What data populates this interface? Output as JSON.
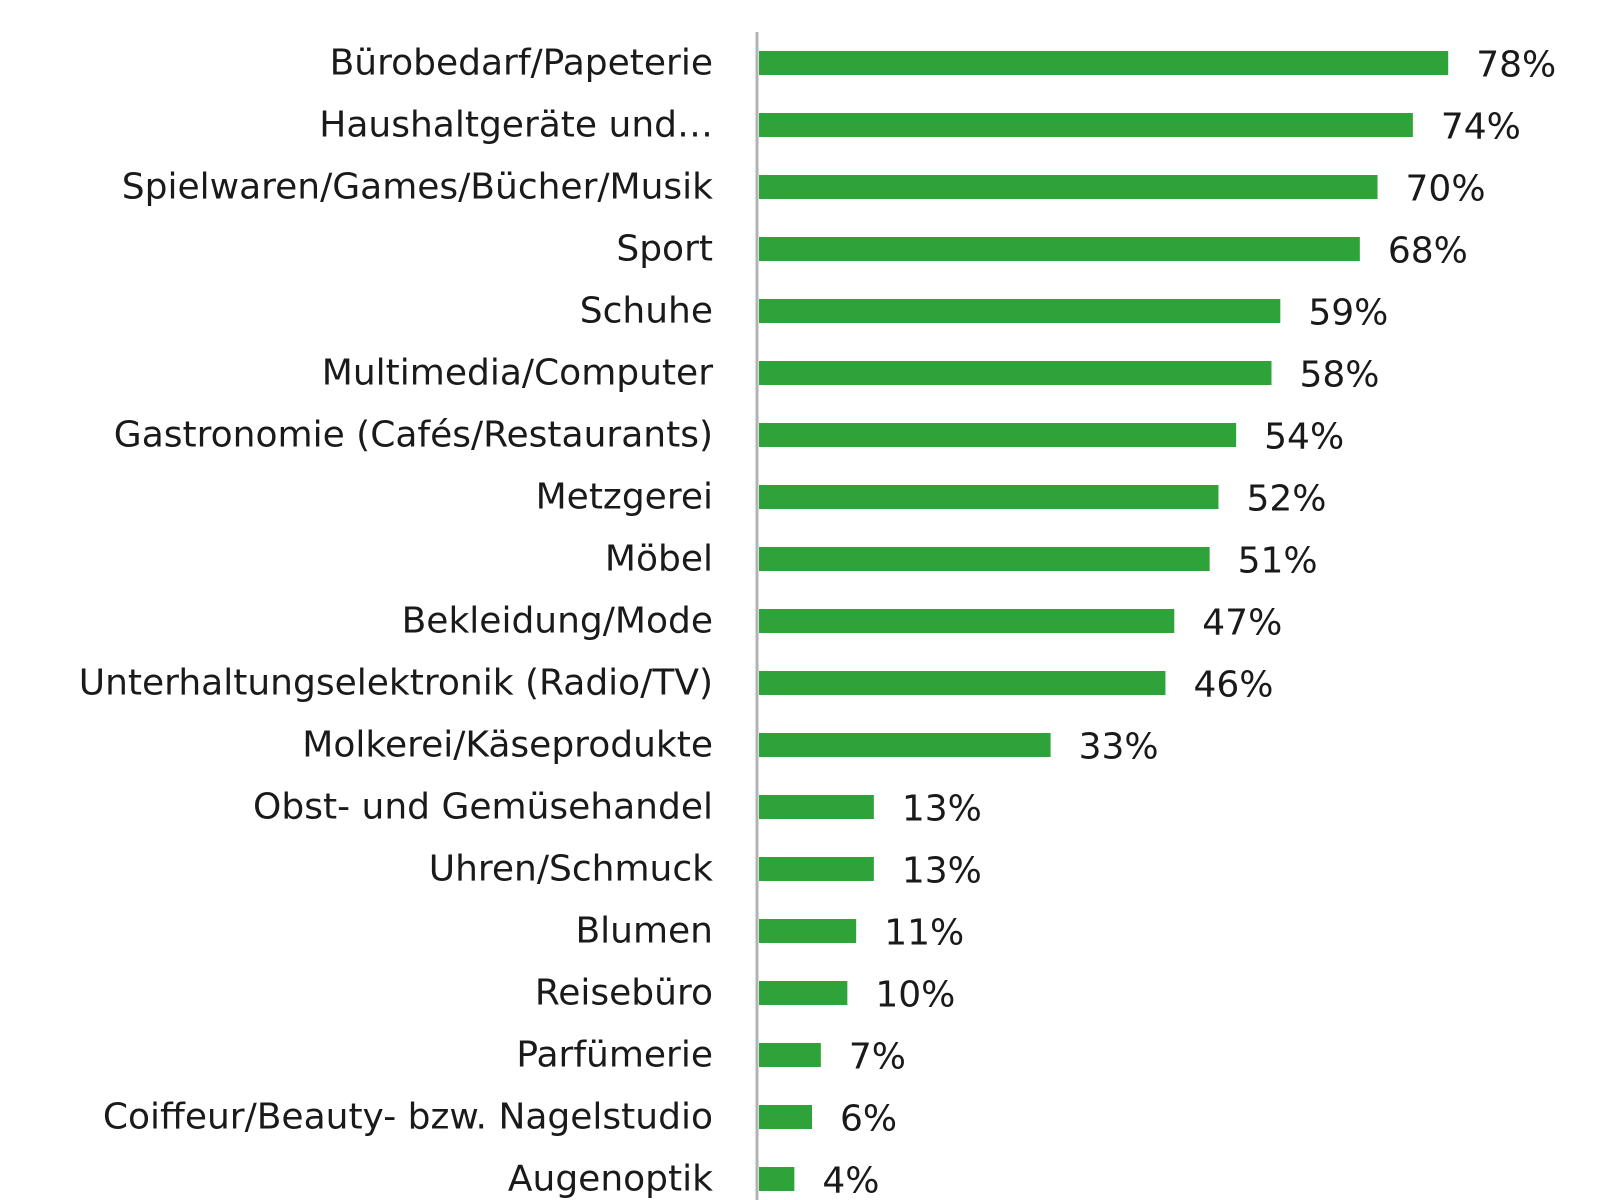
{
  "chart_data": {
    "type": "bar",
    "orientation": "horizontal",
    "categories": [
      "Bürobedarf/Papeterie",
      "Haushaltgeräte und…",
      "Spielwaren/Games/Bücher/Musik",
      "Sport",
      "Schuhe",
      "Multimedia/Computer",
      "Gastronomie (Cafés/Restaurants)",
      "Metzgerei",
      "Möbel",
      "Bekleidung/Mode",
      "Unterhaltungselektronik (Radio/TV)",
      "Molkerei/Käseprodukte",
      "Obst- und Gemüsehandel",
      "Uhren/Schmuck",
      "Blumen",
      "Reisebüro",
      "Parfümerie",
      "Coiffeur/Beauty- bzw. Nagelstudio",
      "Augenoptik"
    ],
    "values": [
      78,
      74,
      70,
      68,
      59,
      58,
      54,
      52,
      51,
      47,
      46,
      33,
      13,
      13,
      11,
      10,
      7,
      6,
      4
    ],
    "value_labels": [
      "78%",
      "74%",
      "70%",
      "68%",
      "59%",
      "58%",
      "54%",
      "52%",
      "51%",
      "47%",
      "46%",
      "33%",
      "13%",
      "13%",
      "11%",
      "10%",
      "7%",
      "6%",
      "4%"
    ],
    "unit": "%",
    "xlim": [
      0,
      80
    ],
    "grid": false,
    "legend": "none",
    "bar_color": "#2ea33a",
    "axis_color": "#b3b3b3",
    "text_color": "#1a1a1a"
  }
}
